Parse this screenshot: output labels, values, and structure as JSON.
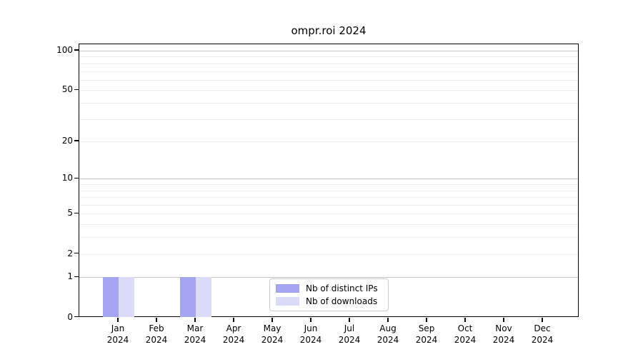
{
  "title": "ompr.roi 2024",
  "chart_data": {
    "type": "bar",
    "title": "ompr.roi 2024",
    "categories": [
      "Jan 2024",
      "Feb 2024",
      "Mar 2024",
      "Apr 2024",
      "May 2024",
      "Jun 2024",
      "Jul 2024",
      "Aug 2024",
      "Sep 2024",
      "Oct 2024",
      "Nov 2024",
      "Dec 2024"
    ],
    "x_months": [
      "Jan",
      "Feb",
      "Mar",
      "Apr",
      "May",
      "Jun",
      "Jul",
      "Aug",
      "Sep",
      "Oct",
      "Nov",
      "Dec"
    ],
    "x_year": "2024",
    "series": [
      {
        "name": "Nb of distinct IPs",
        "color": "#a5a5f2",
        "values": [
          1,
          0,
          1,
          0,
          0,
          0,
          0,
          0,
          0,
          0,
          0,
          0
        ]
      },
      {
        "name": "Nb of downloads",
        "color": "#dcdcf8",
        "values": [
          1,
          0,
          1,
          0,
          0,
          0,
          0,
          0,
          0,
          0,
          0,
          0
        ]
      }
    ],
    "y_axis": {
      "scale": "log10(1+value)",
      "tick_values": [
        0,
        1,
        2,
        5,
        10,
        20,
        50,
        100
      ],
      "tick_labels": [
        "0",
        "1",
        "2",
        "5",
        "10",
        "20",
        "50",
        "100"
      ],
      "major_grid_values": [
        1,
        10,
        100
      ],
      "minor_grid_values": [
        2,
        3,
        4,
        5,
        6,
        7,
        8,
        9,
        20,
        30,
        40,
        50,
        60,
        70,
        80,
        90
      ],
      "ylim": [
        0,
        112
      ]
    },
    "legend": {
      "position": "lower center"
    },
    "grid": true,
    "colors": {
      "spine": "#000000",
      "major_grid": "#c3c3c3",
      "minor_grid": "#ececec",
      "legend_border": "#cccccc"
    }
  }
}
